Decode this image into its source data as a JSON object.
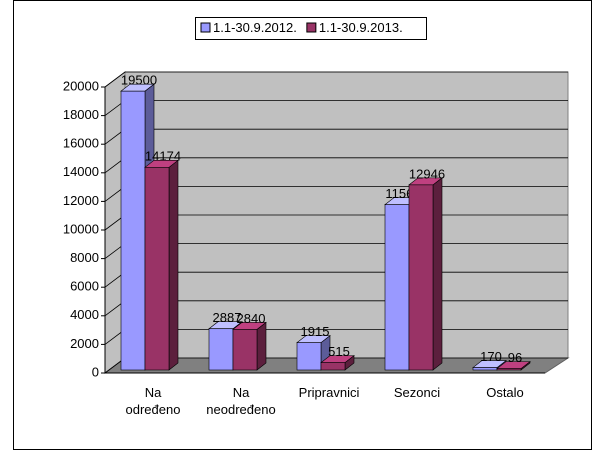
{
  "chart_data": {
    "type": "bar3d",
    "categories": [
      "Na određeno",
      "Na neodređeno",
      "Pripravnici",
      "Sezonci",
      "Ostalo"
    ],
    "series": [
      {
        "name": "1.1-30.9.2012.",
        "color": "#9999ff",
        "values": [
          19500,
          2887,
          1915,
          11562,
          170
        ]
      },
      {
        "name": "1.1-30.9.2013.",
        "color": "#993366",
        "values": [
          14174,
          2840,
          515,
          12946,
          96
        ]
      }
    ],
    "ylim": [
      0,
      20000
    ],
    "yticks": [
      0,
      2000,
      4000,
      6000,
      8000,
      10000,
      12000,
      14000,
      16000,
      18000,
      20000
    ],
    "grid": true,
    "legend": "top"
  }
}
